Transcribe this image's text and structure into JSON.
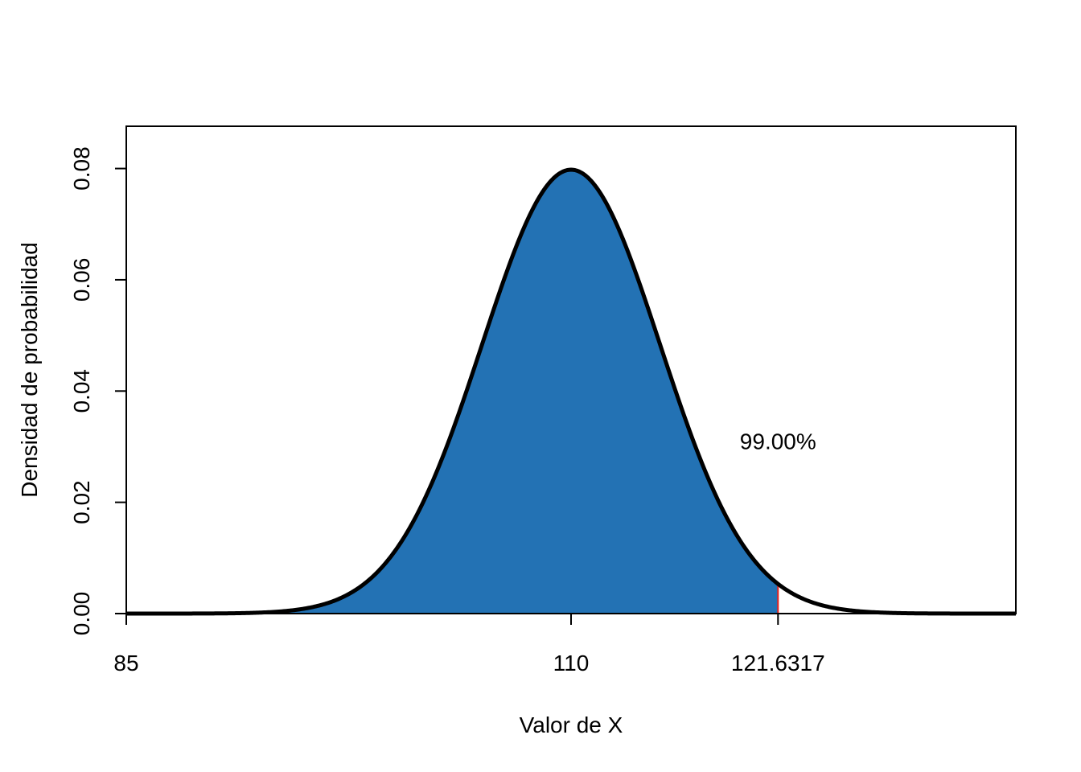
{
  "chart_data": {
    "type": "area",
    "title": "",
    "xlabel": "Valor de X",
    "ylabel": "Densidad de probabilidad",
    "distribution": "normal",
    "mean": 110,
    "sd": 5,
    "xlim": [
      85,
      135
    ],
    "ylim": [
      0,
      0.0876
    ],
    "shaded_region": {
      "from": 85,
      "to": 121.6317
    },
    "cutoff": 121.6317,
    "annotation": {
      "text": "99.00%",
      "x": 121.6317,
      "y": 0.031
    },
    "x_ticks": [
      {
        "value": 85,
        "label": "85"
      },
      {
        "value": 110,
        "label": "110"
      },
      {
        "value": 121.6317,
        "label": "121.6317"
      }
    ],
    "y_ticks": [
      {
        "value": 0.0,
        "label": "0.00"
      },
      {
        "value": 0.02,
        "label": "0.02"
      },
      {
        "value": 0.04,
        "label": "0.04"
      },
      {
        "value": 0.06,
        "label": "0.06"
      },
      {
        "value": 0.08,
        "label": "0.08"
      }
    ],
    "colors": {
      "fill": "#2372B4",
      "curve": "#000000",
      "cutoff_line": "#E8231F",
      "axes": "#000000"
    }
  }
}
